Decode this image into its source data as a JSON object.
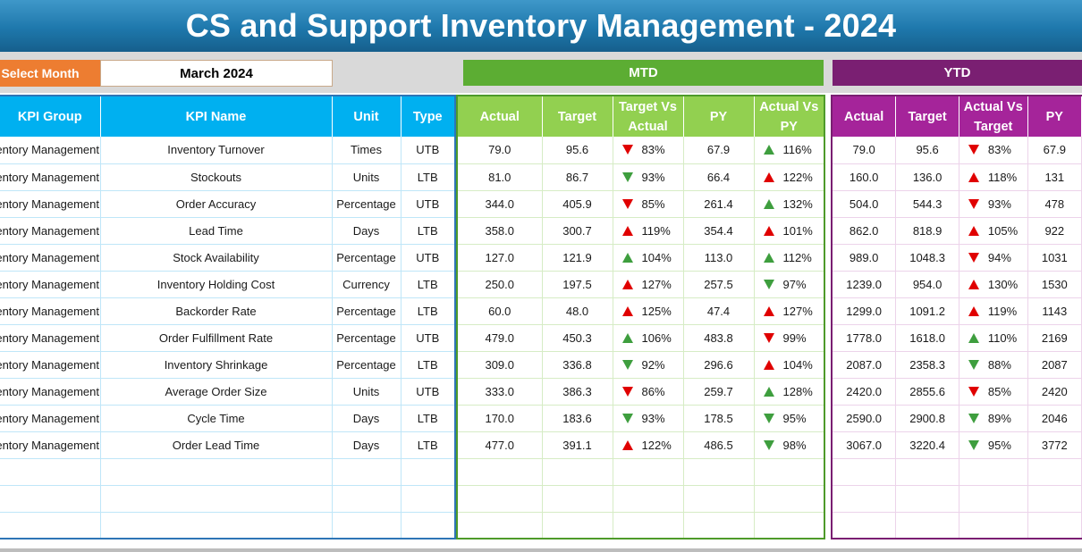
{
  "title": "CS and Support Inventory Management - 2024",
  "month_selector": {
    "label": "Select Month",
    "value": "March 2024"
  },
  "sections": {
    "mtd": "MTD",
    "ytd": "YTD"
  },
  "left_headers": [
    "KPI Group",
    "KPI Name",
    "Unit",
    "Type"
  ],
  "mtd_headers": [
    "Actual",
    "Target",
    "Target Vs Actual",
    "PY",
    "Actual Vs PY"
  ],
  "ytd_headers": [
    "Actual",
    "Target",
    "Actual Vs Target",
    "PY"
  ],
  "colors": {
    "banner": "#1e78ac",
    "month_label": "#ed7d31",
    "mtd": "#5cad33",
    "ytd": "#7a1f72",
    "left_header": "#00b0f0",
    "mtd_header": "#92d050",
    "ytd_header": "#a5249a",
    "arrow_good": "#3e9e3e",
    "arrow_bad": "#e00000"
  },
  "rows": [
    {
      "group": "Inventory Management",
      "name": "Inventory Turnover",
      "unit": "Times",
      "type": "UTB",
      "mtd": {
        "actual": "79.0",
        "target": "95.6",
        "tva": "83%",
        "tva_icon": "down-red",
        "py": "67.9",
        "avp": "116%",
        "avp_icon": "up-green"
      },
      "ytd": {
        "actual": "79.0",
        "target": "95.6",
        "avt": "83%",
        "avt_icon": "down-red",
        "py": "67.9"
      }
    },
    {
      "group": "Inventory Management",
      "name": "Stockouts",
      "unit": "Units",
      "type": "LTB",
      "mtd": {
        "actual": "81.0",
        "target": "86.7",
        "tva": "93%",
        "tva_icon": "down-green",
        "py": "66.4",
        "avp": "122%",
        "avp_icon": "up-red"
      },
      "ytd": {
        "actual": "160.0",
        "target": "136.0",
        "avt": "118%",
        "avt_icon": "up-red",
        "py": "131"
      }
    },
    {
      "group": "Inventory Management",
      "name": "Order Accuracy",
      "unit": "Percentage",
      "type": "UTB",
      "mtd": {
        "actual": "344.0",
        "target": "405.9",
        "tva": "85%",
        "tva_icon": "down-red",
        "py": "261.4",
        "avp": "132%",
        "avp_icon": "up-green"
      },
      "ytd": {
        "actual": "504.0",
        "target": "544.3",
        "avt": "93%",
        "avt_icon": "down-red",
        "py": "478"
      }
    },
    {
      "group": "Inventory Management",
      "name": "Lead Time",
      "unit": "Days",
      "type": "LTB",
      "mtd": {
        "actual": "358.0",
        "target": "300.7",
        "tva": "119%",
        "tva_icon": "up-red",
        "py": "354.4",
        "avp": "101%",
        "avp_icon": "up-red"
      },
      "ytd": {
        "actual": "862.0",
        "target": "818.9",
        "avt": "105%",
        "avt_icon": "up-red",
        "py": "922"
      }
    },
    {
      "group": "Inventory Management",
      "name": "Stock Availability",
      "unit": "Percentage",
      "type": "UTB",
      "mtd": {
        "actual": "127.0",
        "target": "121.9",
        "tva": "104%",
        "tva_icon": "up-green",
        "py": "113.0",
        "avp": "112%",
        "avp_icon": "up-green"
      },
      "ytd": {
        "actual": "989.0",
        "target": "1048.3",
        "avt": "94%",
        "avt_icon": "down-red",
        "py": "1031"
      }
    },
    {
      "group": "Inventory Management",
      "name": "Inventory Holding Cost",
      "unit": "Currency",
      "type": "LTB",
      "mtd": {
        "actual": "250.0",
        "target": "197.5",
        "tva": "127%",
        "tva_icon": "up-red",
        "py": "257.5",
        "avp": "97%",
        "avp_icon": "down-green"
      },
      "ytd": {
        "actual": "1239.0",
        "target": "954.0",
        "avt": "130%",
        "avt_icon": "up-red",
        "py": "1530"
      }
    },
    {
      "group": "Inventory Management",
      "name": "Backorder Rate",
      "unit": "Percentage",
      "type": "LTB",
      "mtd": {
        "actual": "60.0",
        "target": "48.0",
        "tva": "125%",
        "tva_icon": "up-red",
        "py": "47.4",
        "avp": "127%",
        "avp_icon": "up-red"
      },
      "ytd": {
        "actual": "1299.0",
        "target": "1091.2",
        "avt": "119%",
        "avt_icon": "up-red",
        "py": "1143"
      }
    },
    {
      "group": "Inventory Management",
      "name": "Order Fulfillment Rate",
      "unit": "Percentage",
      "type": "UTB",
      "mtd": {
        "actual": "479.0",
        "target": "450.3",
        "tva": "106%",
        "tva_icon": "up-green",
        "py": "483.8",
        "avp": "99%",
        "avp_icon": "down-red"
      },
      "ytd": {
        "actual": "1778.0",
        "target": "1618.0",
        "avt": "110%",
        "avt_icon": "up-green",
        "py": "2169"
      }
    },
    {
      "group": "Inventory Management",
      "name": "Inventory Shrinkage",
      "unit": "Percentage",
      "type": "LTB",
      "mtd": {
        "actual": "309.0",
        "target": "336.8",
        "tva": "92%",
        "tva_icon": "down-green",
        "py": "296.6",
        "avp": "104%",
        "avp_icon": "up-red"
      },
      "ytd": {
        "actual": "2087.0",
        "target": "2358.3",
        "avt": "88%",
        "avt_icon": "down-green",
        "py": "2087"
      }
    },
    {
      "group": "Inventory Management",
      "name": "Average Order Size",
      "unit": "Units",
      "type": "UTB",
      "mtd": {
        "actual": "333.0",
        "target": "386.3",
        "tva": "86%",
        "tva_icon": "down-red",
        "py": "259.7",
        "avp": "128%",
        "avp_icon": "up-green"
      },
      "ytd": {
        "actual": "2420.0",
        "target": "2855.6",
        "avt": "85%",
        "avt_icon": "down-red",
        "py": "2420"
      }
    },
    {
      "group": "Inventory Management",
      "name": "Cycle Time",
      "unit": "Days",
      "type": "LTB",
      "mtd": {
        "actual": "170.0",
        "target": "183.6",
        "tva": "93%",
        "tva_icon": "down-green",
        "py": "178.5",
        "avp": "95%",
        "avp_icon": "down-green"
      },
      "ytd": {
        "actual": "2590.0",
        "target": "2900.8",
        "avt": "89%",
        "avt_icon": "down-green",
        "py": "2046"
      }
    },
    {
      "group": "Inventory Management",
      "name": "Order Lead Time",
      "unit": "Days",
      "type": "LTB",
      "mtd": {
        "actual": "477.0",
        "target": "391.1",
        "tva": "122%",
        "tva_icon": "up-red",
        "py": "486.5",
        "avp": "98%",
        "avp_icon": "down-green"
      },
      "ytd": {
        "actual": "3067.0",
        "target": "3220.4",
        "avt": "95%",
        "avt_icon": "down-green",
        "py": "3772"
      }
    }
  ]
}
